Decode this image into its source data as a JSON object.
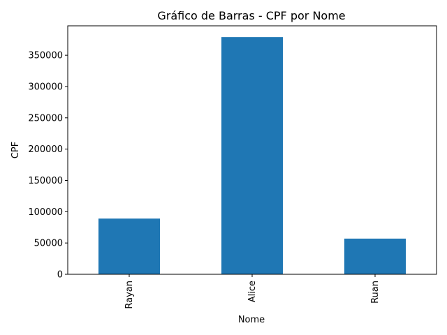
{
  "chart_data": {
    "type": "bar",
    "title": "Gráfico de Barras - CPF por Nome",
    "xlabel": "Nome",
    "ylabel": "CPF",
    "categories": [
      "Rayan",
      "Alice",
      "Ruan"
    ],
    "values": [
      89000,
      379000,
      57000
    ],
    "ylim": [
      0,
      397000
    ],
    "yticks": [
      0,
      50000,
      100000,
      150000,
      200000,
      250000,
      300000,
      350000
    ],
    "grid": false,
    "bar_color": "#1f77b4"
  }
}
